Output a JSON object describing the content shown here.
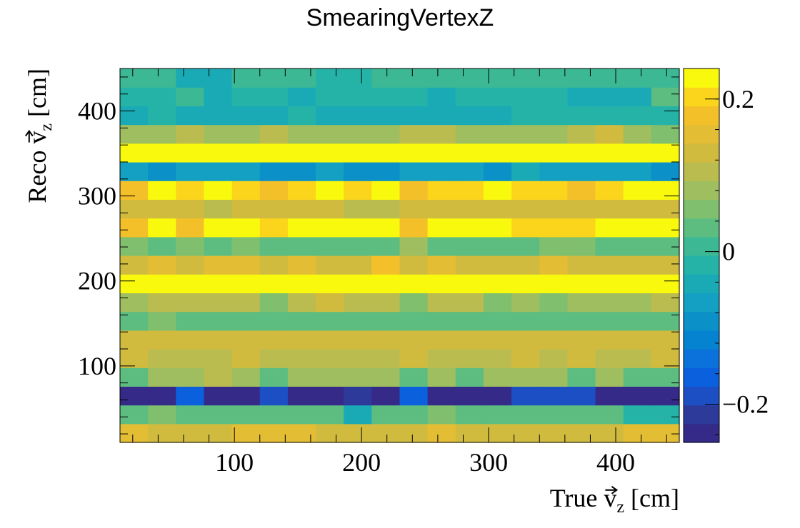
{
  "chart_data": {
    "type": "heatmap",
    "title": "SmearingVertexZ",
    "xlabel": {
      "main": "True v",
      "sub": "z",
      "unit": "[cm]",
      "vector": true
    },
    "ylabel": {
      "main": "Reco v",
      "sub": "z",
      "unit": "[cm]",
      "vector": true
    },
    "x_range": [
      10,
      450
    ],
    "y_range": [
      10,
      450
    ],
    "x_bins": 20,
    "y_bins": 20,
    "x_ticks": [
      {
        "value": 100,
        "label": "100"
      },
      {
        "value": 200,
        "label": "200"
      },
      {
        "value": 300,
        "label": "300"
      },
      {
        "value": 400,
        "label": "400"
      }
    ],
    "y_ticks": [
      {
        "value": 100,
        "label": "100"
      },
      {
        "value": 200,
        "label": "200"
      },
      {
        "value": 300,
        "label": "300"
      },
      {
        "value": 400,
        "label": "400"
      }
    ],
    "z_range": [
      -0.25,
      0.24
    ],
    "colorbar_ticks": [
      {
        "value": 0.2,
        "label": "0.2"
      },
      {
        "value": 0,
        "label": "0"
      },
      {
        "value": -0.2,
        "label": "−0.2"
      }
    ],
    "colormap": [
      "#352a87",
      "#2e3a9a",
      "#1d4fc4",
      "#0b60dd",
      "#0a72da",
      "#0582d0",
      "#0b90c8",
      "#14a0c2",
      "#1aaab6",
      "#25b3a8",
      "#3cb994",
      "#5dbd80",
      "#80bf6e",
      "#9fbe5f",
      "#bbbc4f",
      "#d1bb3f",
      "#e3bd33",
      "#f4c02a",
      "#fbd51c",
      "#f9f90e"
    ],
    "values": [
      [
        0.16,
        0.14,
        0.14,
        0.14,
        0.16,
        0.16,
        0.16,
        0.14,
        0.14,
        0.14,
        0.14,
        0.16,
        0.14,
        0.14,
        0.14,
        0.14,
        0.14,
        0.14,
        0.16,
        0.16
      ],
      [
        0.02,
        0.06,
        0.02,
        0.02,
        0.02,
        0.02,
        0.02,
        0.02,
        -0.03,
        0.02,
        0.02,
        0.06,
        0.02,
        0.02,
        0.02,
        0.02,
        0.02,
        0.02,
        -0.01,
        -0.01
      ],
      [
        -0.23,
        -0.24,
        -0.17,
        -0.24,
        -0.24,
        -0.2,
        -0.24,
        -0.24,
        -0.21,
        -0.24,
        -0.17,
        -0.24,
        -0.24,
        -0.24,
        -0.2,
        -0.2,
        -0.2,
        -0.24,
        -0.24,
        -0.24
      ],
      [
        0.04,
        0.08,
        0.08,
        0.1,
        0.08,
        0.04,
        0.08,
        0.08,
        0.08,
        0.08,
        0.04,
        0.08,
        0.04,
        0.08,
        0.08,
        0.08,
        0.04,
        0.08,
        0.04,
        0.04
      ],
      [
        0.12,
        0.1,
        0.1,
        0.1,
        0.12,
        0.1,
        0.1,
        0.1,
        0.1,
        0.1,
        0.12,
        0.1,
        0.1,
        0.1,
        0.12,
        0.1,
        0.12,
        0.1,
        0.1,
        0.12
      ],
      [
        0.14,
        0.12,
        0.12,
        0.12,
        0.12,
        0.14,
        0.14,
        0.12,
        0.12,
        0.12,
        0.12,
        0.12,
        0.12,
        0.12,
        0.12,
        0.12,
        0.12,
        0.12,
        0.12,
        0.12
      ],
      [
        0.04,
        0.06,
        0.04,
        0.04,
        0.04,
        0.04,
        0.04,
        0.04,
        0.04,
        0.04,
        0.04,
        0.04,
        0.04,
        0.04,
        0.04,
        0.04,
        0.04,
        0.04,
        0.04,
        0.04
      ],
      [
        0.08,
        0.1,
        0.1,
        0.1,
        0.1,
        0.06,
        0.1,
        0.12,
        0.1,
        0.1,
        0.06,
        0.1,
        0.1,
        0.06,
        0.08,
        0.06,
        0.08,
        0.08,
        0.08,
        0.1
      ],
      [
        0.24,
        0.24,
        0.24,
        0.24,
        0.24,
        0.22,
        0.24,
        0.24,
        0.24,
        0.24,
        0.24,
        0.24,
        0.24,
        0.24,
        0.24,
        0.24,
        0.24,
        0.22,
        0.24,
        0.24
      ],
      [
        0.12,
        0.16,
        0.14,
        0.16,
        0.16,
        0.12,
        0.16,
        0.14,
        0.14,
        0.18,
        0.14,
        0.16,
        0.14,
        0.12,
        0.14,
        0.16,
        0.14,
        0.14,
        0.14,
        0.14
      ],
      [
        0.06,
        0.04,
        0.06,
        0.04,
        0.06,
        0.04,
        0.04,
        0.04,
        0.04,
        0.04,
        0.08,
        0.04,
        0.04,
        0.02,
        0.04,
        0.06,
        0.06,
        0.04,
        0.04,
        0.02
      ],
      [
        0.18,
        0.22,
        0.18,
        0.22,
        0.22,
        0.2,
        0.24,
        0.22,
        0.22,
        0.22,
        0.18,
        0.24,
        0.22,
        0.22,
        0.2,
        0.2,
        0.2,
        0.22,
        0.22,
        0.22
      ],
      [
        0.14,
        0.14,
        0.14,
        0.1,
        0.14,
        0.14,
        0.14,
        0.14,
        0.1,
        0.1,
        0.12,
        0.14,
        0.14,
        0.14,
        0.12,
        0.12,
        0.12,
        0.14,
        0.14,
        0.14
      ],
      [
        0.18,
        0.22,
        0.2,
        0.22,
        0.2,
        0.18,
        0.2,
        0.22,
        0.2,
        0.22,
        0.18,
        0.2,
        0.2,
        0.24,
        0.2,
        0.2,
        0.18,
        0.2,
        0.22,
        0.22
      ],
      [
        -0.06,
        -0.1,
        -0.06,
        -0.06,
        -0.06,
        -0.1,
        -0.1,
        -0.06,
        -0.08,
        -0.1,
        -0.06,
        -0.06,
        -0.06,
        -0.1,
        -0.05,
        -0.06,
        -0.06,
        -0.06,
        -0.06,
        -0.09
      ],
      [
        0.24,
        0.24,
        0.22,
        0.24,
        0.24,
        0.22,
        0.24,
        0.24,
        0.22,
        0.24,
        0.24,
        0.24,
        0.24,
        0.24,
        0.22,
        0.24,
        0.22,
        0.24,
        0.22,
        0.22
      ],
      [
        0.08,
        0.08,
        0.1,
        0.08,
        0.08,
        0.1,
        0.08,
        0.08,
        0.08,
        0.08,
        0.1,
        0.1,
        0.08,
        0.08,
        0.08,
        0.08,
        0.1,
        0.12,
        0.08,
        0.06
      ],
      [
        -0.04,
        -0.02,
        -0.04,
        -0.04,
        -0.04,
        -0.04,
        -0.02,
        -0.04,
        -0.04,
        -0.04,
        -0.04,
        -0.04,
        -0.04,
        -0.04,
        -0.02,
        -0.02,
        -0.02,
        -0.02,
        -0.02,
        -0.02
      ],
      [
        -0.02,
        -0.02,
        0.0,
        -0.04,
        -0.02,
        -0.02,
        -0.04,
        -0.02,
        -0.02,
        -0.02,
        -0.02,
        -0.04,
        -0.02,
        -0.02,
        -0.02,
        -0.02,
        -0.04,
        -0.04,
        -0.04,
        0.02
      ],
      [
        0.0,
        0.0,
        -0.04,
        -0.04,
        0.0,
        0.0,
        0.0,
        -0.02,
        -0.02,
        0.0,
        0.0,
        0.0,
        0.0,
        0.0,
        0.0,
        0.0,
        0.0,
        0.0,
        0.0,
        0.0
      ]
    ]
  }
}
